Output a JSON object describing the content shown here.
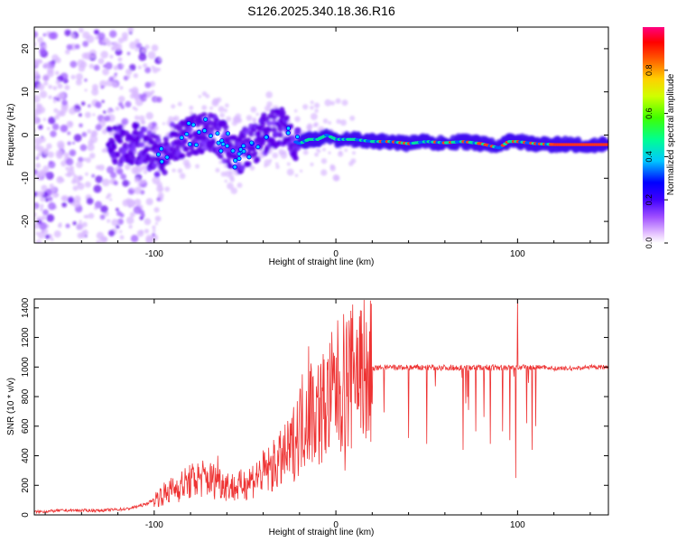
{
  "page_title": "S126.2025.340.18.36.R16",
  "chart_data": [
    {
      "type": "heatmap",
      "title": "S126.2025.340.18.36.R16",
      "xlabel": "Height of straight line (km)",
      "ylabel": "Frequency (Hz)",
      "xlim": [
        -166,
        150
      ],
      "ylim": [
        -25,
        25
      ],
      "x_ticks": [
        -100,
        0,
        100
      ],
      "x_tick_labels": [
        "-100",
        "0",
        "100"
      ],
      "y_ticks": [
        -20,
        -10,
        0,
        10,
        20
      ],
      "y_tick_labels": [
        "-20",
        "-10",
        "0",
        "10",
        "20"
      ],
      "colorbar": {
        "label": "Normalized spectral amplitude",
        "range": [
          0,
          1
        ],
        "ticks": [
          0.0,
          0.2,
          0.4,
          0.6,
          0.8
        ],
        "tick_labels": [
          "0.0",
          "0.2",
          "0.4",
          "0.6",
          "0.8"
        ],
        "colors": [
          "#ffffff",
          "#e8c8ff",
          "#a050ff",
          "#6000ff",
          "#0000ff",
          "#00c8ff",
          "#00ff80",
          "#80ff00",
          "#ffff00",
          "#ff8000",
          "#ff0000",
          "#ff0080"
        ]
      },
      "ridge": {
        "x": [
          -130,
          -110,
          -100,
          -95,
          -90,
          -80,
          -70,
          -60,
          -55,
          -50,
          -45,
          -40,
          -35,
          -30,
          -25,
          -20,
          -15,
          -10,
          -5,
          0,
          10,
          20,
          30,
          40,
          50,
          60,
          70,
          80,
          90,
          95,
          100,
          110,
          120,
          130,
          140,
          150
        ],
        "y": [
          -3,
          -2,
          -4,
          -6,
          -2,
          0,
          1,
          -2,
          -5,
          -3,
          -2,
          0,
          1,
          2,
          -1,
          -2,
          -1,
          -1,
          0,
          -1,
          -1,
          -1.5,
          -1.5,
          -2,
          -1.5,
          -1.8,
          -1.5,
          -2,
          -3,
          -1.5,
          -1.5,
          -2,
          -2.2,
          -2.2,
          -2.2,
          -2.2
        ]
      }
    },
    {
      "type": "line",
      "xlabel": "Height of straight line (km)",
      "ylabel": "SNR (10 * v/v)",
      "xlim": [
        -166,
        150
      ],
      "ylim": [
        0,
        1460
      ],
      "x_ticks": [
        -100,
        0,
        100
      ],
      "x_tick_labels": [
        "-100",
        "0",
        "100"
      ],
      "y_ticks": [
        0,
        200,
        400,
        600,
        800,
        1000,
        1200,
        1400
      ],
      "y_tick_labels": [
        "0",
        "200",
        "400",
        "600",
        "800",
        "1000",
        "1200",
        "1400"
      ],
      "color": "#ee3333",
      "envelope": {
        "x": [
          -166,
          -150,
          -130,
          -115,
          -105,
          -95,
          -85,
          -75,
          -65,
          -55,
          -45,
          -35,
          -25,
          -20,
          -15,
          -10,
          -5,
          0,
          5,
          10,
          15,
          20,
          25,
          30,
          40,
          50,
          60,
          70,
          80,
          90,
          95,
          100,
          105,
          110,
          115,
          120,
          130,
          140,
          150
        ],
        "y": [
          20,
          30,
          30,
          40,
          70,
          140,
          200,
          250,
          230,
          180,
          250,
          320,
          430,
          600,
          720,
          700,
          750,
          850,
          900,
          930,
          960,
          990,
          1000,
          1000,
          1000,
          1000,
          1000,
          1000,
          1000,
          1000,
          1000,
          1000,
          1000,
          1000,
          1000,
          990,
          990,
          1000,
          1000
        ]
      },
      "spikes": [
        {
          "x": 100,
          "y": 1460
        },
        {
          "x": -15,
          "y": 1140
        },
        {
          "x": 10,
          "y": 1100
        },
        {
          "x": -65,
          "y": 400
        }
      ],
      "dips": [
        {
          "x": 5,
          "y": 300
        },
        {
          "x": 15,
          "y": 550
        },
        {
          "x": 20,
          "y": 750
        },
        {
          "x": 40,
          "y": 520
        },
        {
          "x": 50,
          "y": 480
        },
        {
          "x": 70,
          "y": 440
        },
        {
          "x": 85,
          "y": 480
        },
        {
          "x": 99,
          "y": 250
        },
        {
          "x": 108,
          "y": 440
        },
        {
          "x": 110,
          "y": 600
        }
      ]
    }
  ]
}
